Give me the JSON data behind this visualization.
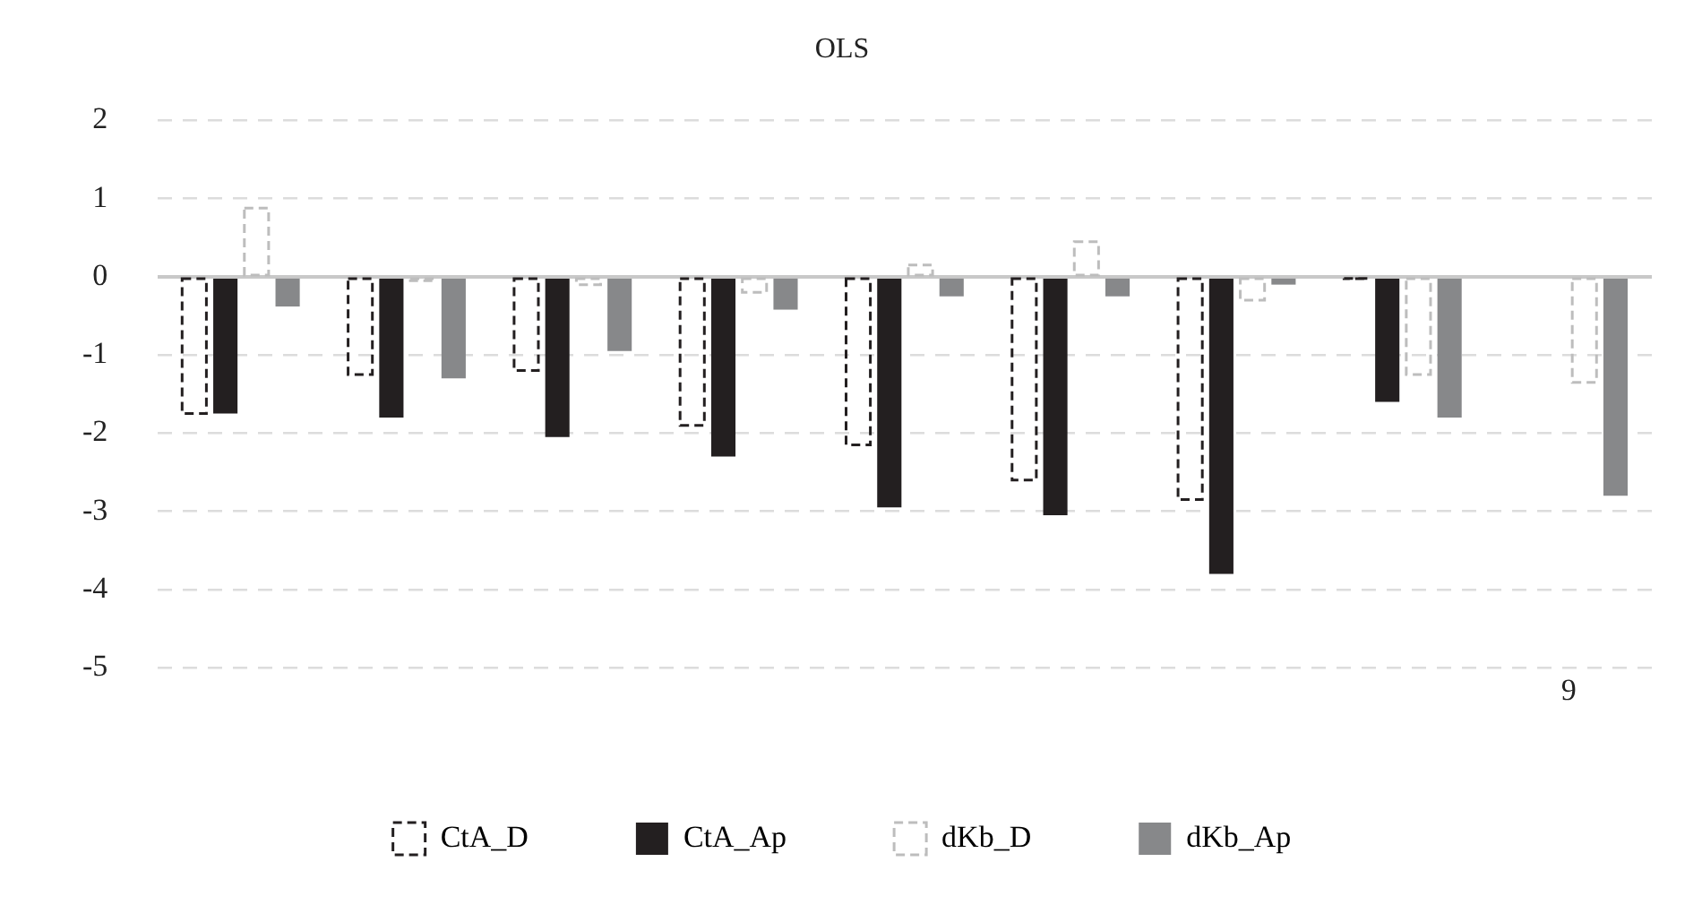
{
  "chart_data": {
    "type": "bar",
    "title": "OLS",
    "categories": [
      null,
      null,
      null,
      null,
      null,
      null,
      null,
      null,
      "9"
    ],
    "series": [
      {
        "name": "CtA_D",
        "color": "#231f20",
        "line_style": "dashed",
        "values": [
          -1.75,
          -1.25,
          -1.2,
          -1.9,
          -2.15,
          -2.6,
          -2.85,
          -0.02,
          null
        ]
      },
      {
        "name": "CtA_Ap",
        "color": "#231f20",
        "values": [
          -1.75,
          -1.8,
          -2.05,
          -2.3,
          -2.95,
          -3.05,
          -3.8,
          -1.6,
          null
        ]
      },
      {
        "name": "dKb_D",
        "color": "#bdbdbd",
        "line_style": "dashed",
        "values": [
          0.88,
          -0.05,
          -0.1,
          -0.2,
          0.15,
          0.45,
          -0.3,
          -1.25,
          -1.35
        ]
      },
      {
        "name": "dKb_Ap",
        "color": "#87888a",
        "values": [
          -0.38,
          -1.3,
          -0.95,
          -0.42,
          -0.25,
          -0.25,
          -0.1,
          -1.8,
          -2.8
        ]
      }
    ],
    "ylim": [
      -5,
      2
    ],
    "yticks": [
      -5,
      -4,
      -3,
      -2,
      -1,
      0,
      1,
      2
    ],
    "grid": "y",
    "legend": "bottom"
  }
}
